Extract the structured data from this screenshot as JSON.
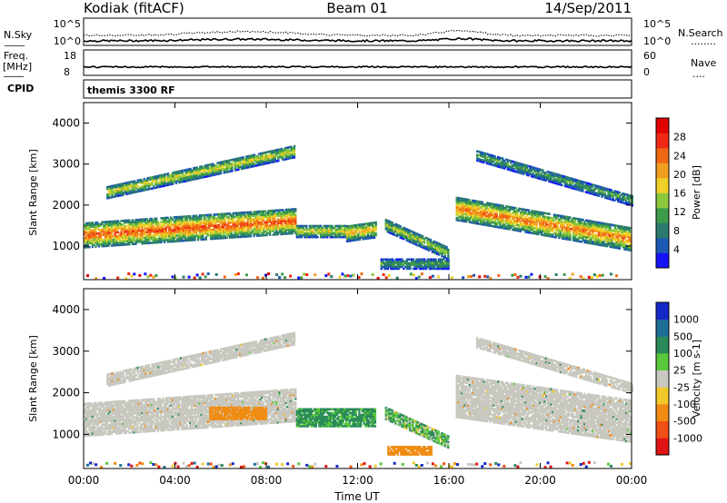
{
  "header": {
    "station": "Kodiak (fitACF)",
    "beam": "Beam 01",
    "date": "14/Sep/2011"
  },
  "panels": {
    "nsky": {
      "label": "N.Sky",
      "ticks": [
        "10^5",
        "10^0"
      ],
      "right_label": "N.Search",
      "right_ticks": [
        "10^5",
        "10^0"
      ],
      "right_legend": "........",
      "left_legend": "____"
    },
    "freq": {
      "label1": "Freq.",
      "label2": "[MHz]",
      "ticks": [
        "18",
        "8"
      ],
      "right_label": "Nave",
      "right_ticks": [
        "60",
        "0"
      ],
      "right_legend": "....",
      "left_legend": "____"
    },
    "cpid": {
      "label": "CPID",
      "mode": "themis 3300 RF"
    }
  },
  "chart_data": [
    {
      "type": "heatmap",
      "parameter": "power",
      "xlabel": "",
      "ylabel": "Slant Range [km]",
      "xlim": [
        0,
        24
      ],
      "ylim": [
        180,
        4500
      ],
      "yticks": [
        "1000",
        "2000",
        "3000",
        "4000"
      ],
      "colorbar": {
        "label": "Power [dB]",
        "range": [
          0,
          32
        ],
        "ticks": [
          "4",
          "8",
          "12",
          "16",
          "20",
          "24",
          "28"
        ],
        "colors": [
          "#1414ff",
          "#1e5ab4",
          "#2a7a6e",
          "#3c9c4c",
          "#8cc83c",
          "#f0d028",
          "#f0a020",
          "#f06814",
          "#f02814",
          "#e00000"
        ]
      },
      "echo_regions": [
        {
          "name": "main-band-early",
          "t0": 0.0,
          "t1": 9.3,
          "r_center_start": 1250,
          "r_center_end": 1600,
          "halfwidth": 300,
          "peak_db": 26
        },
        {
          "name": "upper-band-early",
          "t0": 1.0,
          "t1": 9.2,
          "r_center_start": 2300,
          "r_center_end": 3300,
          "halfwidth": 150,
          "peak_db": 18
        },
        {
          "name": "midday-patch",
          "t0": 9.3,
          "t1": 11.5,
          "r_center_start": 1350,
          "r_center_end": 1350,
          "halfwidth": 150,
          "peak_db": 18
        },
        {
          "name": "noon-patch",
          "t0": 11.5,
          "t1": 12.8,
          "r_center_start": 1300,
          "r_center_end": 1400,
          "halfwidth": 200,
          "peak_db": 20
        },
        {
          "name": "afternoon-descending",
          "t0": 13.2,
          "t1": 16.0,
          "r_center_start": 1500,
          "r_center_end": 800,
          "halfwidth": 150,
          "peak_db": 16
        },
        {
          "name": "near-range-afternoon",
          "t0": 13.0,
          "t1": 16.0,
          "r_center_start": 550,
          "r_center_end": 550,
          "halfwidth": 120,
          "peak_db": 12
        },
        {
          "name": "main-band-late",
          "t0": 16.3,
          "t1": 24.0,
          "r_center_start": 1900,
          "r_center_end": 1150,
          "halfwidth": 280,
          "peak_db": 24
        },
        {
          "name": "upper-band-late",
          "t0": 17.2,
          "t1": 24.0,
          "r_center_start": 3200,
          "r_center_end": 2100,
          "halfwidth": 130,
          "peak_db": 12
        }
      ]
    },
    {
      "type": "heatmap",
      "parameter": "velocity",
      "xlabel": "Time UT",
      "ylabel": "Slant Range [km]",
      "xlim": [
        0,
        24
      ],
      "ylim": [
        180,
        4500
      ],
      "xticks": [
        "00:00",
        "04:00",
        "08:00",
        "12:00",
        "16:00",
        "20:00",
        "00:00"
      ],
      "yticks": [
        "1000",
        "2000",
        "3000",
        "4000"
      ],
      "colorbar": {
        "label": "Velocity [m s-1]",
        "ticks": [
          "1000",
          "500",
          "100",
          "25",
          "-25",
          "-100",
          "-500",
          "-1000"
        ],
        "colors": [
          "#1428c8",
          "#1e6e96",
          "#2a8a5a",
          "#5ac83c",
          "#c8c8c0",
          "#f0c828",
          "#f08c14",
          "#f05014",
          "#e01414"
        ]
      },
      "echo_regions": [
        {
          "name": "ground-scatter-early",
          "t0": 0.0,
          "t1": 9.3,
          "r_center_start": 1350,
          "r_center_end": 1700,
          "halfwidth": 400,
          "velocity": 0
        },
        {
          "name": "upper-band-early",
          "t0": 1.0,
          "t1": 9.2,
          "r_center_start": 2300,
          "r_center_end": 3300,
          "halfwidth": 150,
          "velocity": 0
        },
        {
          "name": "midday-ionospheric",
          "t0": 9.3,
          "t1": 12.8,
          "r_center_start": 1400,
          "r_center_end": 1400,
          "halfwidth": 220,
          "velocity": 150
        },
        {
          "name": "morning-orange-patch",
          "t0": 5.5,
          "t1": 8.0,
          "r_center_start": 1500,
          "r_center_end": 1500,
          "halfwidth": 150,
          "velocity": -200
        },
        {
          "name": "afternoon-green",
          "t0": 13.2,
          "t1": 16.0,
          "r_center_start": 1500,
          "r_center_end": 800,
          "halfwidth": 150,
          "velocity": 60
        },
        {
          "name": "near-range-orange",
          "t0": 13.3,
          "t1": 15.2,
          "r_center_start": 600,
          "r_center_end": 600,
          "halfwidth": 100,
          "velocity": -250
        },
        {
          "name": "ground-scatter-late",
          "t0": 16.3,
          "t1": 24.0,
          "r_center_start": 1900,
          "r_center_end": 1300,
          "halfwidth": 500,
          "velocity": 0
        },
        {
          "name": "upper-band-late",
          "t0": 17.2,
          "t1": 24.0,
          "r_center_start": 3200,
          "r_center_end": 2100,
          "halfwidth": 130,
          "velocity": 0
        }
      ]
    }
  ]
}
